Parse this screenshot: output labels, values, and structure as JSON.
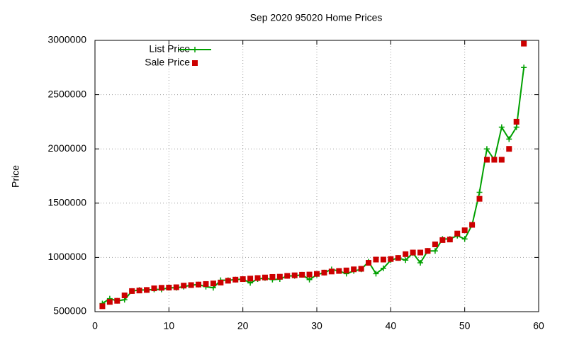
{
  "chart_data": {
    "type": "line",
    "title": "Sep 2020 95020 Home Prices",
    "y_label": "Price",
    "x": [
      1,
      2,
      3,
      4,
      5,
      6,
      7,
      8,
      9,
      10,
      11,
      12,
      13,
      14,
      15,
      16,
      17,
      18,
      19,
      20,
      21,
      22,
      23,
      24,
      25,
      26,
      27,
      28,
      29,
      30,
      31,
      32,
      33,
      34,
      35,
      36,
      37,
      38,
      39,
      40,
      41,
      42,
      43,
      44,
      45,
      46,
      47,
      48,
      49,
      50,
      51,
      52,
      53,
      54,
      55,
      56,
      57,
      58
    ],
    "series": [
      {
        "name": "List Price",
        "color": "#00a000",
        "style": "linespoints",
        "values": [
          575000,
          620000,
          600000,
          610000,
          690000,
          700000,
          700000,
          705000,
          705000,
          720000,
          720000,
          730000,
          745000,
          750000,
          730000,
          720000,
          790000,
          790000,
          795000,
          800000,
          765000,
          800000,
          810000,
          795000,
          800000,
          830000,
          830000,
          840000,
          795000,
          840000,
          860000,
          889000,
          875000,
          850000,
          875000,
          890000,
          960000,
          850000,
          900000,
          975000,
          995000,
          975000,
          1040000,
          950000,
          1060000,
          1060000,
          1170000,
          1170000,
          1200000,
          1170000,
          1300000,
          1600000,
          2000000,
          1900000,
          2200000,
          2090000,
          2200000,
          2750000
        ]
      },
      {
        "name": "Sale Price",
        "color": "#cc0000",
        "style": "points",
        "values": [
          550000,
          590000,
          600000,
          650000,
          690000,
          695000,
          700000,
          715000,
          720000,
          722000,
          725000,
          740000,
          745000,
          750000,
          755000,
          760000,
          768000,
          785000,
          795000,
          800000,
          805000,
          810000,
          815000,
          820000,
          822000,
          830000,
          835000,
          840000,
          842000,
          848000,
          860000,
          870000,
          875000,
          880000,
          890000,
          895000,
          950000,
          980000,
          980000,
          985000,
          995000,
          1030000,
          1045000,
          1045000,
          1060000,
          1120000,
          1160000,
          1165000,
          1220000,
          1250000,
          1300000,
          1540000,
          1900000,
          1900000,
          1900000,
          2000000,
          2250000,
          2970000
        ]
      }
    ],
    "xlim": [
      0,
      60
    ],
    "xticks": [
      0,
      10,
      20,
      30,
      40,
      50,
      60
    ],
    "ylim": [
      500000,
      3000000
    ],
    "yticks": [
      500000,
      1000000,
      1500000,
      2000000,
      2500000,
      3000000
    ],
    "grid": true,
    "legend": "top-left"
  }
}
